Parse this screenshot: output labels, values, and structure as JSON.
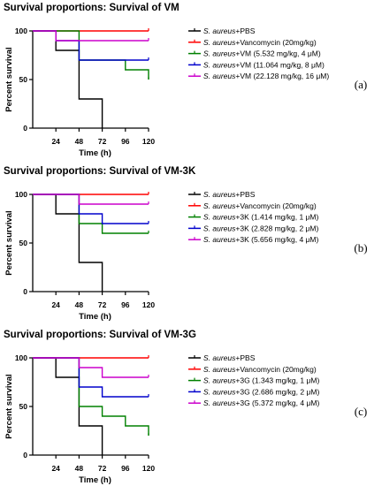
{
  "figure": {
    "panel_labels": [
      "(a)",
      "(b)",
      "(c)"
    ]
  },
  "chart_data": [
    {
      "type": "line",
      "step": true,
      "title": "Survival proportions: Survival of VM",
      "xlabel": "Time (h)",
      "ylabel": "Percent survival",
      "xlim": [
        0,
        120
      ],
      "ylim": [
        0,
        100
      ],
      "xticks": [
        24,
        48,
        72,
        96,
        120
      ],
      "yticks": [
        0,
        50,
        100
      ],
      "grid": false,
      "legend_position": "right",
      "series": [
        {
          "name_italic": "S. aureus",
          "name_rest": "+PBS",
          "color": "#000000",
          "x": [
            0,
            24,
            48,
            72
          ],
          "y": [
            100,
            80,
            30,
            0
          ]
        },
        {
          "name_italic": "S. aureus",
          "name_rest": "+Vancomycin (20mg/kg)",
          "color": "#ff0000",
          "x": [
            0,
            120
          ],
          "y": [
            100,
            100
          ]
        },
        {
          "name_italic": "S. aureus",
          "name_rest": "+VM (5.532 mg/kg, 4 μM)",
          "color": "#008000",
          "x": [
            0,
            48,
            96,
            120
          ],
          "y": [
            100,
            70,
            60,
            50
          ]
        },
        {
          "name_italic": "S. aureus",
          "name_rest": "+VM (11.064 mg/kg, 8 μM)",
          "color": "#0000cc",
          "x": [
            0,
            24,
            48,
            96,
            120
          ],
          "y": [
            100,
            90,
            70,
            70,
            70
          ]
        },
        {
          "name_italic": "S. aureus",
          "name_rest": "+VM (22.128 mg/kg, 16 μM)",
          "color": "#cc00cc",
          "x": [
            0,
            24,
            120
          ],
          "y": [
            100,
            90,
            90
          ]
        }
      ]
    },
    {
      "type": "line",
      "step": true,
      "title": "Survival proportions: Survival of VM-3K",
      "xlabel": "Time (h)",
      "ylabel": "Percent survival",
      "xlim": [
        0,
        120
      ],
      "ylim": [
        0,
        100
      ],
      "xticks": [
        24,
        48,
        72,
        96,
        120
      ],
      "yticks": [
        0,
        50,
        100
      ],
      "grid": false,
      "legend_position": "right",
      "series": [
        {
          "name_italic": "S. aureus",
          "name_rest": "+PBS",
          "color": "#000000",
          "x": [
            0,
            24,
            48,
            72
          ],
          "y": [
            100,
            80,
            30,
            0
          ]
        },
        {
          "name_italic": "S. aureus",
          "name_rest": "+Vancomycin (20mg/kg)",
          "color": "#ff0000",
          "x": [
            0,
            120
          ],
          "y": [
            100,
            100
          ]
        },
        {
          "name_italic": "S. aureus",
          "name_rest": "+3K (1.414 mg/kg, 1 μM)",
          "color": "#008000",
          "x": [
            0,
            48,
            72,
            120
          ],
          "y": [
            100,
            70,
            60,
            60
          ]
        },
        {
          "name_italic": "S. aureus",
          "name_rest": "+3K (2.828 mg/kg, 2 μM)",
          "color": "#0000cc",
          "x": [
            0,
            48,
            72,
            120
          ],
          "y": [
            100,
            80,
            70,
            70
          ]
        },
        {
          "name_italic": "S. aureus",
          "name_rest": "+3K (5.656 mg/kg, 4 μM)",
          "color": "#cc00cc",
          "x": [
            0,
            48,
            120
          ],
          "y": [
            100,
            90,
            90
          ]
        }
      ]
    },
    {
      "type": "line",
      "step": true,
      "title": "Survival proportions: Survival of VM-3G",
      "xlabel": "Time (h)",
      "ylabel": "Percent survival",
      "xlim": [
        0,
        120
      ],
      "ylim": [
        0,
        100
      ],
      "xticks": [
        24,
        48,
        72,
        96,
        120
      ],
      "yticks": [
        0,
        50,
        100
      ],
      "grid": false,
      "legend_position": "right",
      "series": [
        {
          "name_italic": "S. aureus",
          "name_rest": "+PBS",
          "color": "#000000",
          "x": [
            0,
            24,
            48,
            72
          ],
          "y": [
            100,
            80,
            30,
            0
          ]
        },
        {
          "name_italic": "S. aureus",
          "name_rest": "+Vancomycin (20mg/kg)",
          "color": "#ff0000",
          "x": [
            0,
            120
          ],
          "y": [
            100,
            100
          ]
        },
        {
          "name_italic": "S. aureus",
          "name_rest": "+3G (1.343 mg/kg, 1 μM)",
          "color": "#008000",
          "x": [
            0,
            48,
            72,
            96,
            120
          ],
          "y": [
            100,
            50,
            40,
            30,
            20
          ]
        },
        {
          "name_italic": "S. aureus",
          "name_rest": "+3G (2.686 mg/kg, 2 μM)",
          "color": "#0000cc",
          "x": [
            0,
            48,
            72,
            120
          ],
          "y": [
            100,
            70,
            60,
            60
          ]
        },
        {
          "name_italic": "S. aureus",
          "name_rest": "+3G (5.372 mg/kg, 4 μM)",
          "color": "#cc00cc",
          "x": [
            0,
            48,
            72,
            120
          ],
          "y": [
            100,
            90,
            80,
            80
          ]
        }
      ]
    }
  ]
}
